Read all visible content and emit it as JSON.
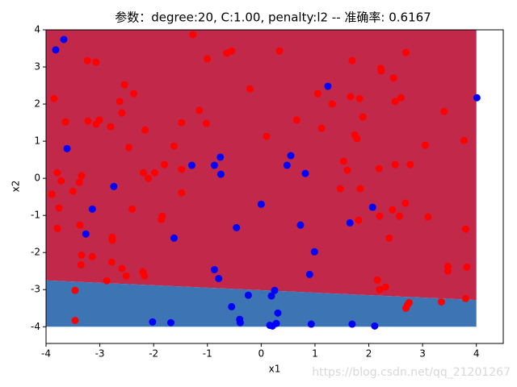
{
  "chart_data": {
    "type": "scatter",
    "title": "参数：degree:20, C:1.00, penalty:l2 -- 准确率: 0.6167",
    "x_label": "x1",
    "y_label": "x2",
    "watermark": "https://blog.csdn.net/qq_21201267",
    "xlim": [
      -4,
      4.5
    ],
    "ylim": [
      -4.45,
      4
    ],
    "xticks": [
      -4,
      -3,
      -2,
      -1,
      0,
      1,
      2,
      3,
      4
    ],
    "yticks": [
      -4,
      -3,
      -2,
      -1,
      0,
      1,
      2,
      3,
      4
    ],
    "grid": false,
    "region_xlim": [
      -4,
      4
    ],
    "region_ylim": [
      -4,
      4
    ],
    "decision_boundary": {
      "x": [
        -4,
        4
      ],
      "y": [
        -2.75,
        -3.28
      ]
    },
    "region_colors": {
      "above": "#c2284a",
      "below": "#3c74b4"
    },
    "series": [
      {
        "color": "#ff0000",
        "x": [
          -1.27,
          -3.23,
          -3.07,
          -3.85,
          -3.64,
          -3.22,
          -3.07,
          -3.01,
          -2.8,
          -2.63,
          -2.59,
          -2.54,
          -2.37,
          -2.46,
          -2.16,
          -2.19,
          -2.1,
          -1.98,
          -1.8,
          -1.62,
          -1.48,
          -1.48,
          -1.48,
          -1.15,
          -1.0,
          -1.02,
          -0.64,
          -0.55,
          -0.21,
          0.34,
          0.1,
          0.66,
          1.05,
          1.12,
          1.32,
          1.69,
          1.66,
          1.83,
          1.89,
          1.74,
          1.78,
          1.53,
          1.6,
          1.47,
          1.84,
          1.81,
          2.23,
          2.22,
          2.46,
          2.69,
          2.49,
          2.6,
          3.05,
          3.4,
          3.77,
          2.77,
          2.49,
          2.19,
          2.68,
          2.44,
          2.2,
          2.57,
          3.1,
          3.8,
          2.38,
          3.47,
          3.47,
          3.82,
          3.8,
          3.35,
          2.75,
          2.72,
          2.69,
          2.16,
          2.2,
          2.31,
          -3.89,
          -3.79,
          -3.72,
          -3.76,
          -3.79,
          -3.5,
          -3.38,
          -3.34,
          -3.37,
          -3.34,
          -3.35,
          -3.14,
          -2.77,
          -2.77,
          -2.78,
          -2.59,
          -2.51,
          -2.87,
          -2.4,
          -2.2,
          -2.17,
          -1.84,
          -1.86,
          -3.46,
          -3.46
        ],
        "y": [
          3.87,
          3.17,
          3.13,
          2.15,
          1.52,
          1.54,
          1.46,
          1.57,
          1.39,
          2.07,
          1.76,
          2.52,
          2.28,
          0.83,
          1.3,
          0.15,
          0.0,
          0.15,
          0.37,
          0.87,
          1.5,
          0.24,
          -0.39,
          1.83,
          3.22,
          1.48,
          3.37,
          3.43,
          2.41,
          3.43,
          1.13,
          1.57,
          2.28,
          1.35,
          2.0,
          3.17,
          2.2,
          2.15,
          1.65,
          1.17,
          1.07,
          0.46,
          0.22,
          -0.28,
          -0.28,
          -1.13,
          2.89,
          2.96,
          2.7,
          3.39,
          2.07,
          2.17,
          0.89,
          1.8,
          1.02,
          0.37,
          0.37,
          0.26,
          -0.67,
          -0.85,
          -1.02,
          -1.02,
          -1.04,
          -1.37,
          -1.61,
          -2.37,
          -2.5,
          -2.39,
          -3.24,
          -3.33,
          -3.35,
          -3.41,
          -3.5,
          -2.74,
          -3.0,
          -2.93,
          -0.43,
          0.15,
          -0.07,
          -0.8,
          -1.35,
          -0.35,
          -0.11,
          0.07,
          -1.26,
          -2.07,
          -2.33,
          -2.11,
          -1.59,
          -1.67,
          -2.26,
          -2.43,
          -2.63,
          -2.76,
          -0.83,
          -2.52,
          -2.63,
          -1.02,
          -1.11,
          -3.02,
          -3.83
        ]
      },
      {
        "color": "#0000ff",
        "x": [
          -3.67,
          -3.82,
          -3.61,
          -2.74,
          -3.14,
          -3.26,
          -1.62,
          -1.29,
          -0.76,
          -0.87,
          -0.75,
          -0.46,
          0.0,
          0.48,
          0.55,
          0.82,
          1.24,
          4.01,
          0.73,
          0.99,
          1.65,
          2.07,
          -0.87,
          -0.79,
          0.9,
          -0.24,
          0.19,
          0.25,
          -0.55,
          -0.4,
          -0.39,
          0.31,
          -2.02,
          -1.68,
          0.16,
          0.21,
          0.28,
          0.93,
          1.69,
          2.11
        ],
        "y": [
          3.74,
          3.46,
          0.8,
          -0.22,
          -0.83,
          -1.5,
          -1.61,
          0.35,
          0.57,
          0.35,
          0.11,
          -1.33,
          -0.7,
          0.35,
          0.61,
          0.13,
          2.48,
          2.17,
          -1.26,
          -1.98,
          -1.2,
          -0.78,
          -2.46,
          -2.7,
          -2.59,
          -3.15,
          -3.17,
          -3.02,
          -3.46,
          -3.8,
          -3.89,
          -3.63,
          -3.87,
          -3.89,
          -3.96,
          -3.98,
          -3.91,
          -3.93,
          -3.93,
          -3.98
        ]
      }
    ]
  }
}
